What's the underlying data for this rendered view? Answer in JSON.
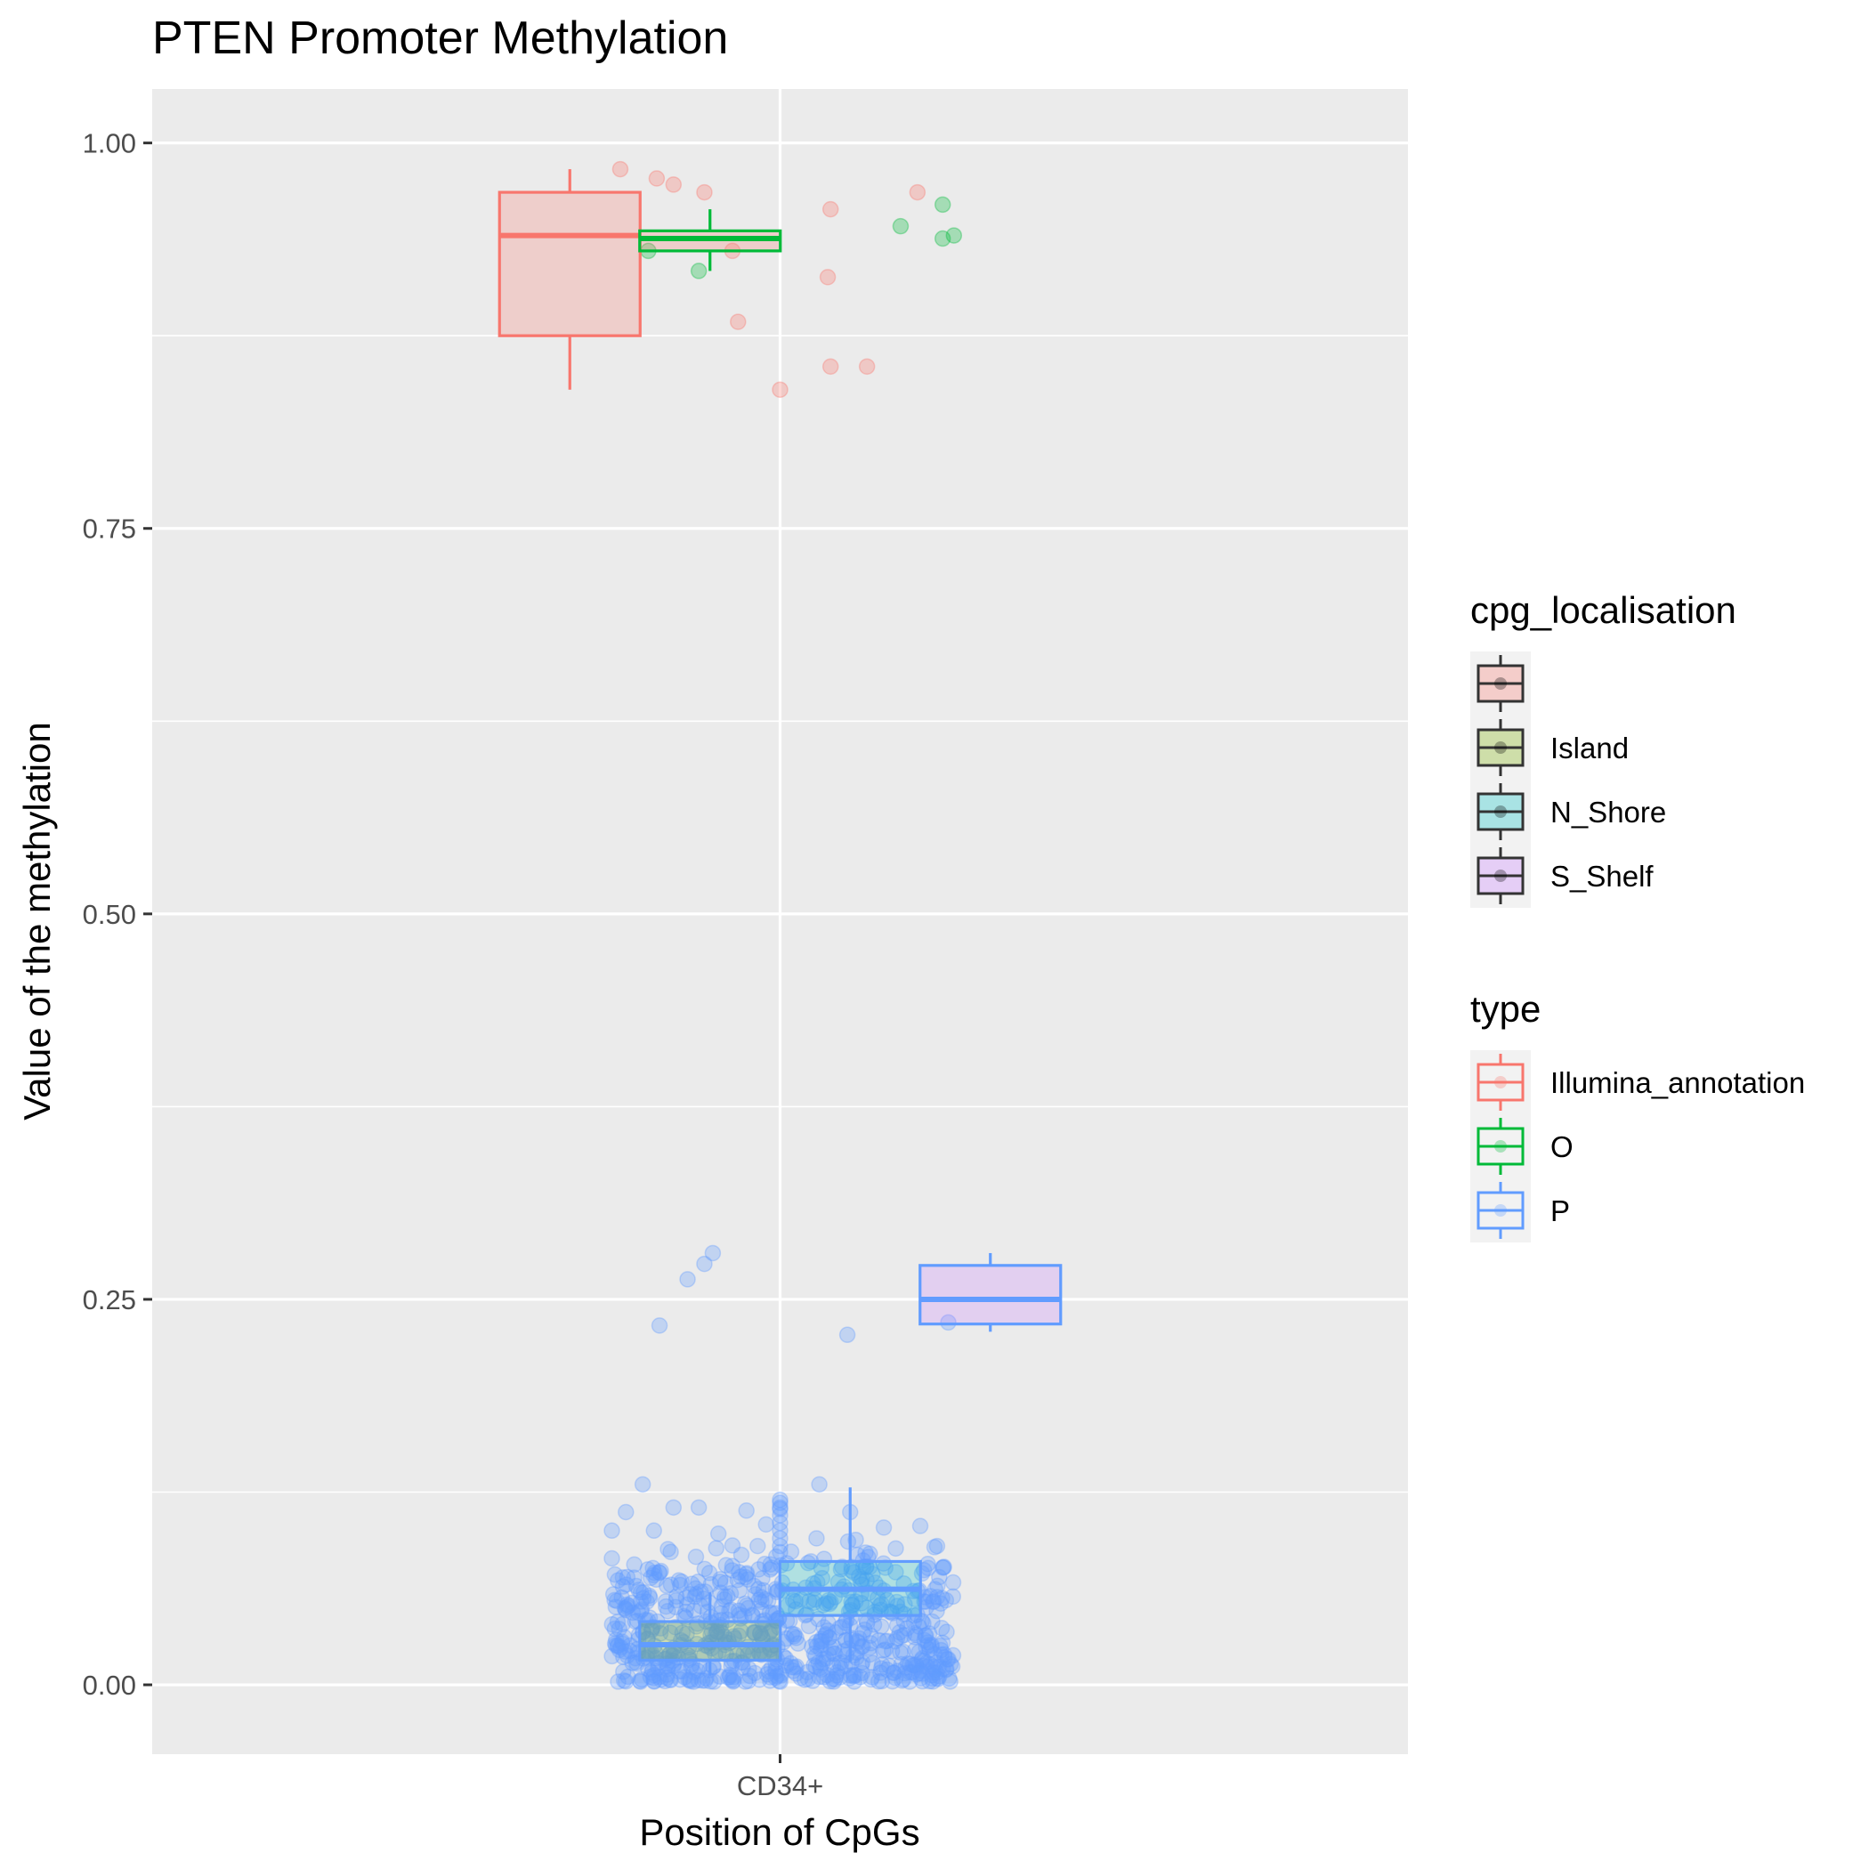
{
  "chart_data": {
    "type": "box",
    "title": "PTEN Promoter Methylation",
    "xlabel": "Position of CpGs",
    "ylabel": "Value of the methylation",
    "categories": [
      "CD34+"
    ],
    "ylim": [
      -0.045,
      1.035
    ],
    "yticks": [
      0.0,
      0.25,
      0.5,
      0.75,
      1.0
    ],
    "ytick_labels": [
      "0.00",
      "0.25",
      "0.50",
      "0.75",
      "1.00"
    ],
    "grid": true,
    "legends": [
      {
        "title": "cpg_localisation",
        "placement": "right",
        "entries": [
          {
            "label": "",
            "fill": "#f8766d"
          },
          {
            "label": "Island",
            "fill": "#7cae00"
          },
          {
            "label": "N_Shore",
            "fill": "#00bfc4"
          },
          {
            "label": "S_Shelf",
            "fill": "#c77cff"
          }
        ]
      },
      {
        "title": "type",
        "placement": "right",
        "entries": [
          {
            "label": "Illumina_annotation",
            "color": "#f8766d"
          },
          {
            "label": "O",
            "color": "#00ba38"
          },
          {
            "label": "P",
            "color": "#619cff"
          }
        ]
      }
    ],
    "boxes": [
      {
        "type": "Illumina_annotation",
        "localisation": "",
        "color": "#f8766d",
        "fill": "#f8766d",
        "dodge": -0.75,
        "min": 0.84,
        "q1": 0.875,
        "median": 0.94,
        "q3": 0.968,
        "max": 0.983
      },
      {
        "type": "O",
        "localisation": "Island",
        "color": "#00ba38",
        "fill": "#f8766d",
        "dodge": -0.25,
        "min": 0.917,
        "q1": 0.93,
        "median": 0.938,
        "q3": 0.943,
        "max": 0.957
      },
      {
        "type": "P",
        "localisation": "Island",
        "color": "#619cff",
        "fill": "#7cae00",
        "dodge": -0.25,
        "min": 0.006,
        "q1": 0.016,
        "median": 0.026,
        "q3": 0.041,
        "max": 0.06
      },
      {
        "type": "P",
        "localisation": "N_Shore",
        "color": "#619cff",
        "fill": "#00bfc4",
        "dodge": 0.25,
        "min": 0.015,
        "q1": 0.045,
        "median": 0.062,
        "q3": 0.08,
        "max": 0.128
      },
      {
        "type": "P",
        "localisation": "S_Shelf",
        "color": "#619cff",
        "fill": "#c77cff",
        "dodge": 0.75,
        "min": 0.229,
        "q1": 0.234,
        "median": 0.25,
        "q3": 0.272,
        "max": 0.28
      }
    ],
    "points": [
      {
        "type": "Illumina_annotation",
        "color": "#f8766d",
        "values": [
          [
            -0.57,
            0.983
          ],
          [
            -0.44,
            0.977
          ],
          [
            -0.38,
            0.973
          ],
          [
            -0.27,
            0.968
          ],
          [
            -0.17,
            0.93
          ],
          [
            -0.15,
            0.884
          ],
          [
            0.0,
            0.84
          ],
          [
            0.18,
            0.957
          ],
          [
            0.17,
            0.913
          ],
          [
            0.18,
            0.855
          ],
          [
            0.31,
            0.855
          ],
          [
            0.49,
            0.968
          ]
        ]
      },
      {
        "type": "O",
        "color": "#00ba38",
        "values": [
          [
            -0.47,
            0.93
          ],
          [
            -0.29,
            0.917
          ],
          [
            0.43,
            0.946
          ],
          [
            0.58,
            0.938
          ],
          [
            0.58,
            0.96
          ],
          [
            0.62,
            0.94
          ]
        ]
      },
      {
        "type": "P",
        "color": "#619cff",
        "values": [
          [
            -0.43,
            0.233
          ],
          [
            -0.33,
            0.263
          ],
          [
            -0.27,
            0.273
          ],
          [
            -0.24,
            0.28
          ],
          [
            0.24,
            0.227
          ],
          [
            0.6,
            0.235
          ],
          [
            -0.49,
            0.13
          ],
          [
            0.14,
            0.13
          ],
          [
            -0.38,
            0.115
          ],
          [
            -0.29,
            0.115
          ],
          [
            0.0,
            0.115
          ],
          [
            0.25,
            0.112
          ],
          [
            -0.55,
            0.112
          ],
          [
            -0.12,
            0.113
          ],
          [
            -0.6,
            0.1
          ],
          [
            -0.45,
            0.1
          ],
          [
            -0.22,
            0.098
          ],
          [
            -0.05,
            0.104
          ],
          [
            0.13,
            0.095
          ],
          [
            0.27,
            0.094
          ],
          [
            0.37,
            0.102
          ],
          [
            0.5,
            0.103
          ],
          [
            0.56,
            0.09
          ],
          [
            -0.6,
            0.082
          ],
          [
            -0.52,
            0.078
          ],
          [
            -0.4,
            0.088
          ],
          [
            -0.3,
            0.083
          ],
          [
            -0.17,
            0.077
          ],
          [
            0.1,
            0.079
          ],
          [
            0.32,
            0.085
          ],
          [
            0.58,
            0.076
          ],
          [
            -0.08,
            0.09
          ],
          [
            0.0,
            0.095
          ],
          [
            0.0,
            0.086
          ],
          [
            0.0,
            0.09
          ],
          [
            0.0,
            0.1
          ],
          [
            0.0,
            0.105
          ],
          [
            0.0,
            0.11
          ],
          [
            0.0,
            0.12
          ],
          [
            0.0,
            0.118
          ],
          [
            0.0,
            0.114
          ]
        ]
      }
    ]
  }
}
